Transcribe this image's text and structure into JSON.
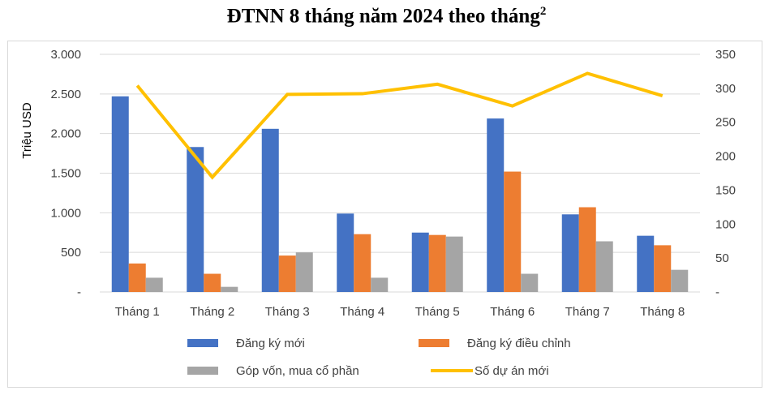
{
  "title": "ĐTNN 8 tháng năm 2024 theo tháng",
  "title_superscript": "2",
  "chart_data": {
    "type": "bar",
    "title": "ĐTNN 8 tháng năm 2024 theo tháng",
    "categories": [
      "Tháng 1",
      "Tháng 2",
      "Tháng 3",
      "Tháng 4",
      "Tháng 5",
      "Tháng 6",
      "Tháng 7",
      "Tháng 8"
    ],
    "ylabel": "Triệu USD",
    "ylim": [
      0,
      3000
    ],
    "y2lim": [
      0,
      350
    ],
    "y_ticks": [
      "-",
      "500",
      "1.000",
      "1.500",
      "2.000",
      "2.500",
      "3.000"
    ],
    "y2_ticks": [
      "-",
      "50",
      "100",
      "150",
      "200",
      "250",
      "300",
      "350"
    ],
    "grid": true,
    "legend_position": "bottom",
    "series": [
      {
        "name": "Đăng ký mới",
        "type": "bar",
        "axis": "left",
        "color": "#4472c4",
        "values": [
          2470,
          1830,
          2060,
          990,
          750,
          2190,
          980,
          710
        ]
      },
      {
        "name": "Đăng ký điều chỉnh",
        "type": "bar",
        "axis": "left",
        "color": "#ed7d31",
        "values": [
          360,
          230,
          460,
          730,
          720,
          1520,
          1070,
          590
        ]
      },
      {
        "name": "Góp vốn, mua cổ phần",
        "type": "bar",
        "axis": "left",
        "color": "#a5a5a5",
        "values": [
          180,
          65,
          500,
          180,
          700,
          230,
          640,
          280
        ]
      },
      {
        "name": "Số dự án mới",
        "type": "line",
        "axis": "right",
        "color": "#ffc000",
        "values": [
          304,
          169,
          291,
          292,
          306,
          274,
          322,
          289
        ]
      }
    ]
  }
}
